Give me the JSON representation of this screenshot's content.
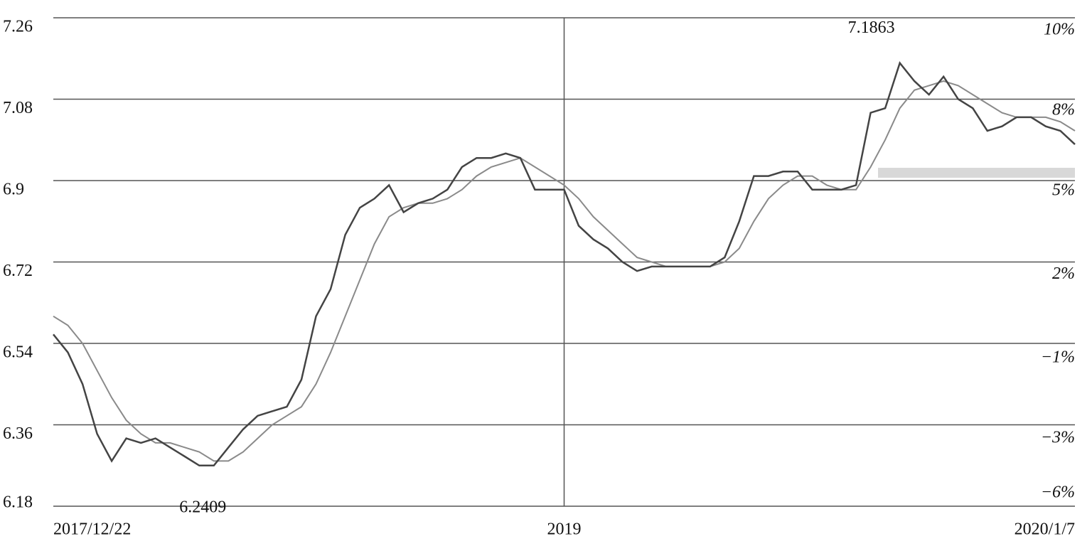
{
  "chart_data": {
    "type": "line",
    "categories": [
      "2017/12/22",
      null,
      null,
      null,
      null,
      null,
      null,
      null,
      null,
      null,
      null,
      null,
      null,
      null,
      null,
      null,
      null,
      null,
      null,
      null,
      null,
      null,
      null,
      null,
      null,
      null,
      null,
      null,
      null,
      null,
      null,
      null,
      null,
      null,
      null,
      "2019",
      null,
      null,
      null,
      null,
      null,
      null,
      null,
      null,
      null,
      null,
      null,
      null,
      null,
      null,
      null,
      null,
      null,
      null,
      null,
      null,
      null,
      null,
      null,
      null,
      null,
      null,
      null,
      null,
      null,
      null,
      null,
      null,
      null,
      null,
      "2020/1/7"
    ],
    "series": [
      {
        "color": "#444444",
        "values": [
          6.56,
          6.52,
          6.45,
          6.34,
          6.28,
          6.33,
          6.32,
          6.33,
          6.31,
          6.29,
          6.27,
          6.27,
          6.31,
          6.35,
          6.38,
          6.39,
          6.4,
          6.46,
          6.6,
          6.66,
          6.78,
          6.84,
          6.86,
          6.89,
          6.83,
          6.85,
          6.86,
          6.88,
          6.93,
          6.95,
          6.95,
          6.96,
          6.95,
          6.88,
          6.88,
          6.88,
          6.8,
          6.77,
          6.75,
          6.72,
          6.7,
          6.71,
          6.71,
          6.71,
          6.71,
          6.71,
          6.73,
          6.81,
          6.91,
          6.91,
          6.92,
          6.92,
          6.88,
          6.88,
          6.88,
          6.89,
          7.05,
          7.06,
          7.16,
          7.12,
          7.09,
          7.13,
          7.08,
          7.06,
          7.01,
          7.02,
          7.04,
          7.04,
          7.02,
          7.01,
          6.98
        ]
      },
      {
        "color": "#8a8a8a",
        "values": [
          6.6,
          6.58,
          6.54,
          6.48,
          6.42,
          6.37,
          6.34,
          6.32,
          6.32,
          6.31,
          6.3,
          6.28,
          6.28,
          6.3,
          6.33,
          6.36,
          6.38,
          6.4,
          6.45,
          6.52,
          6.6,
          6.68,
          6.76,
          6.82,
          6.84,
          6.85,
          6.85,
          6.86,
          6.88,
          6.91,
          6.93,
          6.94,
          6.95,
          6.93,
          6.91,
          6.89,
          6.86,
          6.82,
          6.79,
          6.76,
          6.73,
          6.72,
          6.71,
          6.71,
          6.71,
          6.71,
          6.72,
          6.75,
          6.81,
          6.86,
          6.89,
          6.91,
          6.91,
          6.89,
          6.88,
          6.88,
          6.93,
          6.99,
          7.06,
          7.1,
          7.11,
          7.12,
          7.11,
          7.09,
          7.07,
          7.05,
          7.04,
          7.04,
          7.04,
          7.03,
          7.01
        ]
      }
    ],
    "annotations": [
      "7.1863",
      "6.2409"
    ],
    "ylim": [
      6.18,
      7.26
    ],
    "yticks": [
      6.18,
      6.36,
      6.54,
      6.72,
      6.9,
      7.08,
      7.26
    ],
    "y2lim": [
      -6.0,
      10.4
    ],
    "y2ticks": [
      {
        "value": -6.0,
        "label": "−6%"
      },
      {
        "value": -3.3,
        "label": "−3%"
      },
      {
        "value": -0.6,
        "label": "−1%"
      },
      {
        "value": 2.2,
        "label": "2%"
      },
      {
        "value": 5.0,
        "label": "5%"
      },
      {
        "value": 7.7,
        "label": "8%"
      },
      {
        "value": 10.4,
        "label": "10%"
      }
    ],
    "grid": true
  }
}
